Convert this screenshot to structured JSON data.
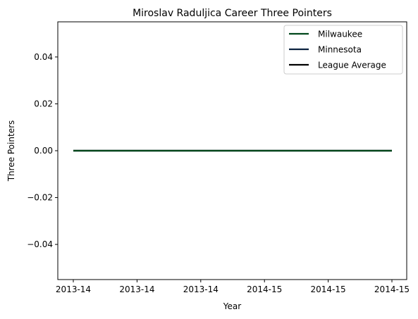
{
  "chart_data": {
    "type": "line",
    "title": "Miroslav Raduljica Career Three Pointers",
    "xlabel": "Year",
    "ylabel": "Three Pointers",
    "x_ticks": [
      "2013-14",
      "2013-14",
      "2013-14",
      "2014-15",
      "2014-15",
      "2014-15"
    ],
    "y_ticks": [
      "−0.04",
      "−0.02",
      "0.00",
      "0.02",
      "0.04"
    ],
    "ylim": [
      -0.055,
      0.055
    ],
    "x": [
      0,
      1
    ],
    "series": [
      {
        "name": "Milwaukee",
        "color": "#00471b",
        "values": [
          0,
          0
        ]
      },
      {
        "name": "Minnesota",
        "color": "#0c2340",
        "values": [
          0,
          0
        ]
      },
      {
        "name": "League Average",
        "color": "#000000",
        "values": [
          0,
          0
        ]
      }
    ],
    "grid": false,
    "legend": "top-right"
  }
}
